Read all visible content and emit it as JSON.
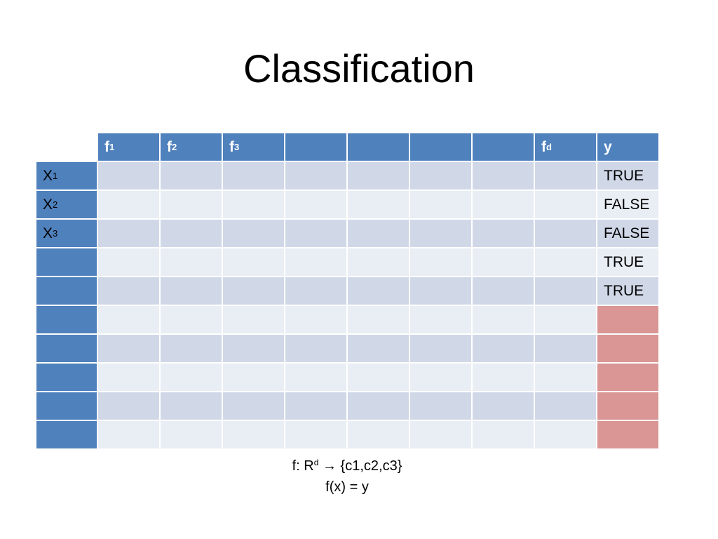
{
  "title": "Classification",
  "table": {
    "columns": [
      {
        "base": "f",
        "sub": "1"
      },
      {
        "base": "f",
        "sub": "2"
      },
      {
        "base": "f",
        "sub": "3"
      },
      {
        "base": "",
        "sub": ""
      },
      {
        "base": "",
        "sub": ""
      },
      {
        "base": "",
        "sub": ""
      },
      {
        "base": "",
        "sub": ""
      },
      {
        "base": "f",
        "sub": "d"
      },
      {
        "base": "y",
        "sub": ""
      }
    ],
    "rows": [
      {
        "label": "X",
        "sub": "1",
        "y": "TRUE"
      },
      {
        "label": "X",
        "sub": "2",
        "y": "FALSE"
      },
      {
        "label": "X",
        "sub": "3",
        "y": "FALSE"
      },
      {
        "label": "",
        "sub": "",
        "y": "TRUE"
      },
      {
        "label": "",
        "sub": "",
        "y": "TRUE"
      },
      {
        "label": "",
        "sub": "",
        "y": ""
      },
      {
        "label": "",
        "sub": "",
        "y": ""
      },
      {
        "label": "",
        "sub": "",
        "y": ""
      },
      {
        "label": "",
        "sub": "",
        "y": ""
      },
      {
        "label": "",
        "sub": "",
        "y": ""
      }
    ]
  },
  "formula": {
    "line1_prefix": "f: R",
    "line1_sup": "d",
    "line1_suffix": " → {c1,c2,c3}",
    "line2": "f(x) = y"
  },
  "colors": {
    "header": "#4f81bd",
    "row_odd": "#d0d8e8",
    "row_even": "#e9edf4",
    "unknown_label": "#d99694"
  }
}
